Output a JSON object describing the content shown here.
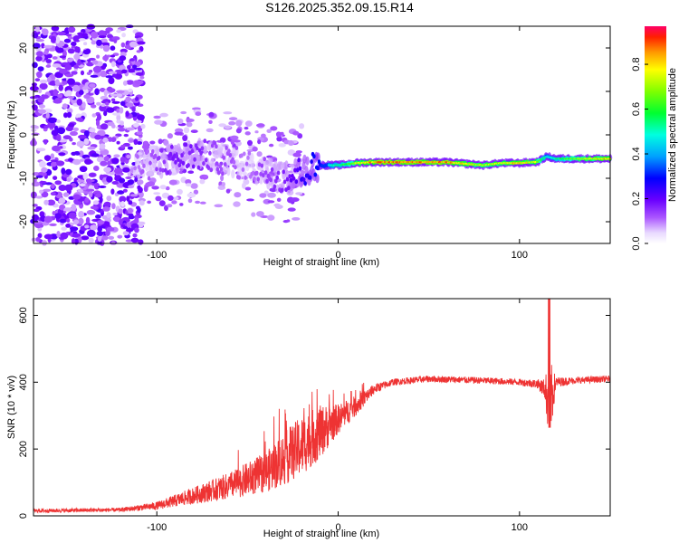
{
  "title": "S126.2025.352.09.15.R14",
  "chart_data": [
    {
      "type": "heatmap",
      "name": "spectrogram",
      "xlabel": "Height of straight line (km)",
      "ylabel": "Frequency (Hz)",
      "xlim": [
        -168,
        150
      ],
      "ylim": [
        -25,
        25
      ],
      "xticks": [
        -100,
        0,
        100
      ],
      "yticks": [
        -20,
        -10,
        0,
        10,
        20
      ],
      "colorbar": {
        "label": "Normalized spectral amplitude",
        "range": [
          0,
          0.97
        ],
        "ticks": [
          0.0,
          0.2,
          0.4,
          0.6,
          0.8
        ]
      },
      "ridge": {
        "description_points_x": [
          -110,
          -100,
          -90,
          -80,
          -70,
          -60,
          -50,
          -40,
          -30,
          -20,
          -10,
          0,
          10,
          20,
          40,
          60,
          80,
          90,
          100,
          110,
          115,
          120,
          130,
          150
        ],
        "frequency": [
          -7,
          -6.5,
          -5.5,
          -4.5,
          -5,
          -6,
          -7,
          -8.5,
          -10,
          -8.5,
          -7,
          -7,
          -6.5,
          -6.3,
          -6.3,
          -6.3,
          -7,
          -6.5,
          -6.5,
          -6.2,
          -5,
          -5.5,
          -5.5,
          -5.5
        ],
        "amplitude": [
          0.15,
          0.2,
          0.25,
          0.25,
          0.2,
          0.18,
          0.15,
          0.2,
          0.25,
          0.35,
          0.45,
          0.6,
          0.8,
          0.95,
          0.97,
          0.95,
          0.8,
          0.85,
          0.9,
          0.8,
          0.5,
          0.6,
          0.75,
          0.9
        ]
      }
    },
    {
      "type": "line",
      "name": "snr",
      "xlabel": "Height of straight line (km)",
      "ylabel": "SNR (10 * v/v)",
      "xlim": [
        -168,
        150
      ],
      "ylim": [
        0,
        650
      ],
      "xticks": [
        -100,
        0,
        100
      ],
      "yticks": [
        0,
        200,
        400,
        600
      ],
      "color": "#ee3333",
      "envelope_x": [
        -168,
        -120,
        -100,
        -80,
        -60,
        -40,
        -30,
        -20,
        -10,
        0,
        10,
        20,
        30,
        50,
        80,
        100,
        110,
        114,
        116,
        118,
        120,
        130,
        150
      ],
      "envelope_mean": [
        15,
        18,
        30,
        60,
        90,
        130,
        170,
        210,
        250,
        290,
        330,
        380,
        400,
        410,
        405,
        400,
        395,
        380,
        350,
        360,
        400,
        405,
        410
      ],
      "envelope_noise": [
        6,
        6,
        12,
        25,
        40,
        60,
        80,
        90,
        80,
        45,
        30,
        15,
        10,
        10,
        10,
        10,
        14,
        30,
        120,
        90,
        15,
        10,
        10
      ],
      "spike": {
        "x": 116.5,
        "max": 650,
        "min": 265
      }
    }
  ]
}
